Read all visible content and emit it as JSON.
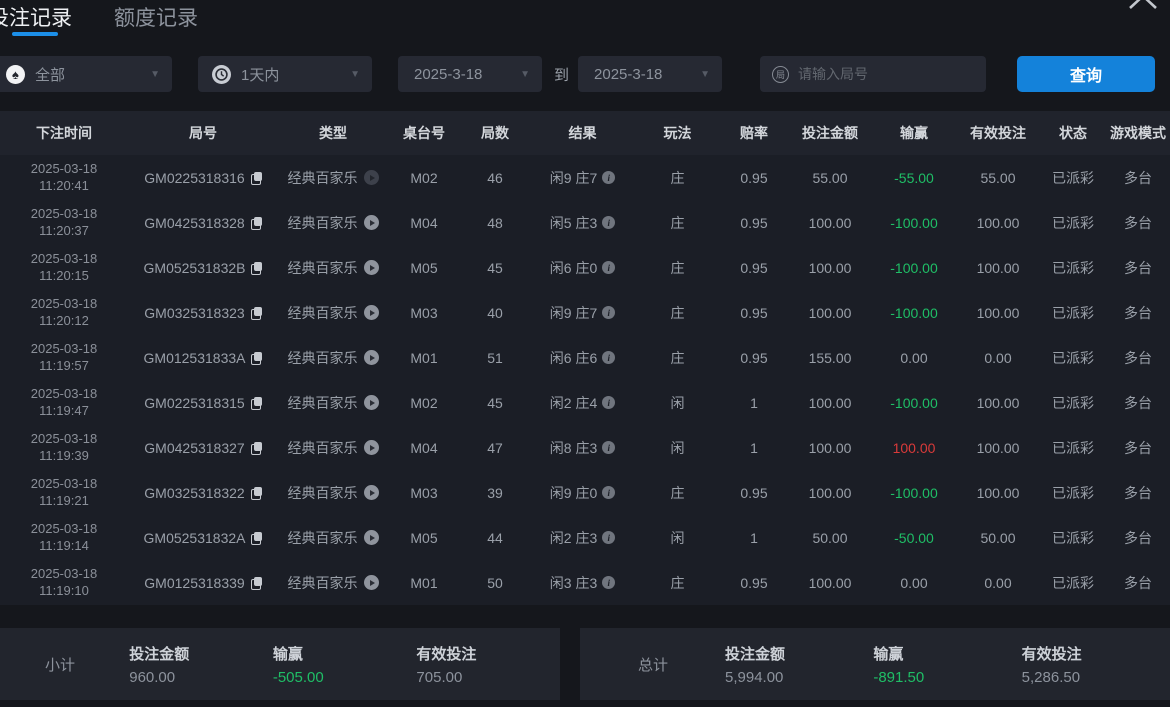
{
  "tabs": [
    {
      "label": "投注记录",
      "active": true
    },
    {
      "label": "额度记录",
      "active": false
    }
  ],
  "filters": {
    "game_type": {
      "value": "全部",
      "icon": "spade-icon"
    },
    "time_range": {
      "value": "1天内",
      "icon": "clock-icon"
    },
    "date_from": "2025-3-18",
    "to_label": "到",
    "date_to": "2025-3-18",
    "round_input": {
      "placeholder": "请输入局号",
      "icon_text": "局"
    },
    "query_button": "查询"
  },
  "table": {
    "columns": [
      "下注时间",
      "局号",
      "类型",
      "桌台号",
      "局数",
      "结果",
      "玩法",
      "赔率",
      "投注金额",
      "输赢",
      "有效投注",
      "状态",
      "游戏模式"
    ],
    "rows": [
      {
        "date": "2025-03-18",
        "time": "11:20:41",
        "round_id": "GM0225318316",
        "type": "经典百家乐",
        "table_no": "M02",
        "round_count": "46",
        "result": "闲9 庄7",
        "play": "庄",
        "odds": "0.95",
        "amount": "55.00",
        "winloss": "-55.00",
        "valid": "55.00",
        "status": "已派彩",
        "mode": "多台",
        "video_dim": true
      },
      {
        "date": "2025-03-18",
        "time": "11:20:37",
        "round_id": "GM0425318328",
        "type": "经典百家乐",
        "table_no": "M04",
        "round_count": "48",
        "result": "闲5 庄3",
        "play": "庄",
        "odds": "0.95",
        "amount": "100.00",
        "winloss": "-100.00",
        "valid": "100.00",
        "status": "已派彩",
        "mode": "多台",
        "video_dim": false
      },
      {
        "date": "2025-03-18",
        "time": "11:20:15",
        "round_id": "GM052531832B",
        "type": "经典百家乐",
        "table_no": "M05",
        "round_count": "45",
        "result": "闲6 庄0",
        "play": "庄",
        "odds": "0.95",
        "amount": "100.00",
        "winloss": "-100.00",
        "valid": "100.00",
        "status": "已派彩",
        "mode": "多台",
        "video_dim": false
      },
      {
        "date": "2025-03-18",
        "time": "11:20:12",
        "round_id": "GM0325318323",
        "type": "经典百家乐",
        "table_no": "M03",
        "round_count": "40",
        "result": "闲9 庄7",
        "play": "庄",
        "odds": "0.95",
        "amount": "100.00",
        "winloss": "-100.00",
        "valid": "100.00",
        "status": "已派彩",
        "mode": "多台",
        "video_dim": false
      },
      {
        "date": "2025-03-18",
        "time": "11:19:57",
        "round_id": "GM012531833A",
        "type": "经典百家乐",
        "table_no": "M01",
        "round_count": "51",
        "result": "闲6 庄6",
        "play": "庄",
        "odds": "0.95",
        "amount": "155.00",
        "winloss": "0.00",
        "valid": "0.00",
        "status": "已派彩",
        "mode": "多台",
        "video_dim": false
      },
      {
        "date": "2025-03-18",
        "time": "11:19:47",
        "round_id": "GM0225318315",
        "type": "经典百家乐",
        "table_no": "M02",
        "round_count": "45",
        "result": "闲2 庄4",
        "play": "闲",
        "odds": "1",
        "amount": "100.00",
        "winloss": "-100.00",
        "valid": "100.00",
        "status": "已派彩",
        "mode": "多台",
        "video_dim": false
      },
      {
        "date": "2025-03-18",
        "time": "11:19:39",
        "round_id": "GM0425318327",
        "type": "经典百家乐",
        "table_no": "M04",
        "round_count": "47",
        "result": "闲8 庄3",
        "play": "闲",
        "odds": "1",
        "amount": "100.00",
        "winloss": "100.00",
        "valid": "100.00",
        "status": "已派彩",
        "mode": "多台",
        "video_dim": false
      },
      {
        "date": "2025-03-18",
        "time": "11:19:21",
        "round_id": "GM0325318322",
        "type": "经典百家乐",
        "table_no": "M03",
        "round_count": "39",
        "result": "闲9 庄0",
        "play": "庄",
        "odds": "0.95",
        "amount": "100.00",
        "winloss": "-100.00",
        "valid": "100.00",
        "status": "已派彩",
        "mode": "多台",
        "video_dim": false
      },
      {
        "date": "2025-03-18",
        "time": "11:19:14",
        "round_id": "GM052531832A",
        "type": "经典百家乐",
        "table_no": "M05",
        "round_count": "44",
        "result": "闲2 庄3",
        "play": "闲",
        "odds": "1",
        "amount": "50.00",
        "winloss": "-50.00",
        "valid": "50.00",
        "status": "已派彩",
        "mode": "多台",
        "video_dim": false
      },
      {
        "date": "2025-03-18",
        "time": "11:19:10",
        "round_id": "GM0125318339",
        "type": "经典百家乐",
        "table_no": "M01",
        "round_count": "50",
        "result": "闲3 庄3",
        "play": "庄",
        "odds": "0.95",
        "amount": "100.00",
        "winloss": "0.00",
        "valid": "0.00",
        "status": "已派彩",
        "mode": "多台",
        "video_dim": false
      }
    ]
  },
  "summary": {
    "subtotal": {
      "label": "小计",
      "amount_label": "投注金额",
      "amount": "960.00",
      "winloss_label": "输赢",
      "winloss": "-505.00",
      "valid_label": "有效投注",
      "valid": "705.00"
    },
    "total": {
      "label": "总计",
      "amount_label": "投注金额",
      "amount": "5,994.00",
      "winloss_label": "输赢",
      "winloss": "-891.50",
      "valid_label": "有效投注",
      "valid": "5,286.50"
    }
  },
  "colors": {
    "accent_blue": "#1482da",
    "loss_green": "#1fbe66",
    "win_red": "#d93a3a",
    "row_bg": "#1b1e26",
    "header_bg": "#20232c"
  }
}
